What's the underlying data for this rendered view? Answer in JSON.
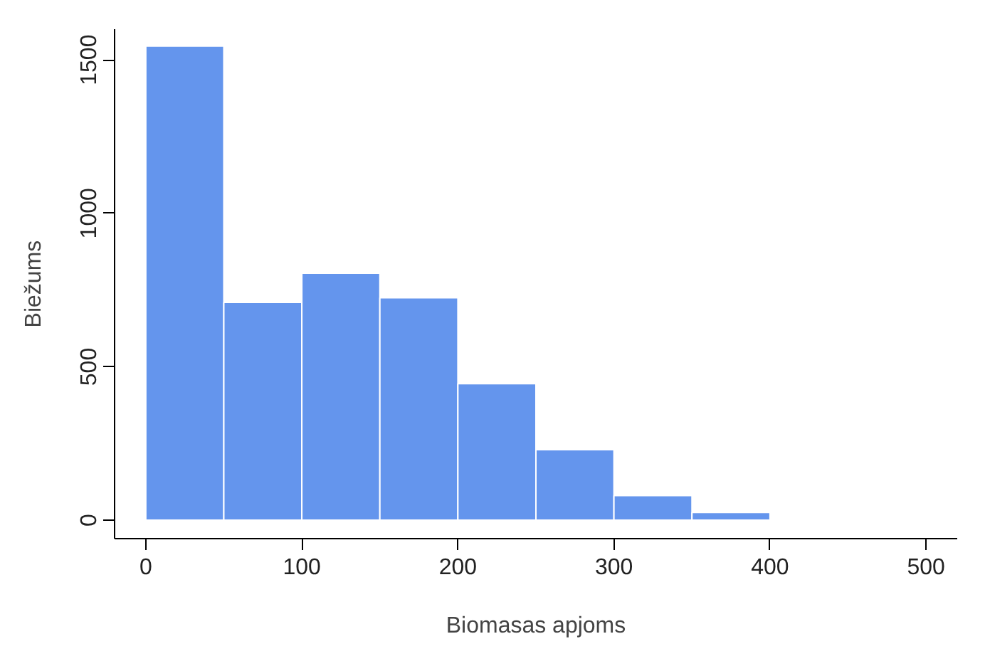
{
  "chart_data": {
    "type": "histogram",
    "xlabel": "Biomasas apjoms",
    "ylabel": "Biežums",
    "bins": [
      0,
      50,
      100,
      150,
      200,
      250,
      300,
      350,
      400
    ],
    "values": [
      1545,
      710,
      805,
      725,
      445,
      230,
      80,
      25
    ],
    "color": "#6495ed",
    "xlim": [
      -20,
      520
    ],
    "ylim": [
      -60,
      1600
    ],
    "xticks": [
      0,
      100,
      200,
      300,
      400,
      500
    ],
    "yticks": [
      0,
      500,
      1000,
      1500
    ],
    "grid": false
  }
}
